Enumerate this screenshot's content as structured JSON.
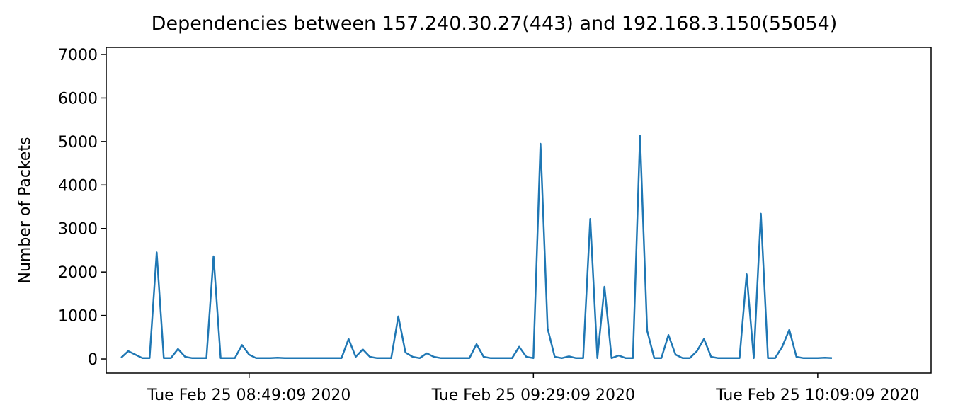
{
  "chart_data": {
    "type": "line",
    "title": "Dependencies between 157.240.30.27(443) and 192.168.3.150(55054)",
    "y_label": "Number of Packets",
    "color": "#1f77b4",
    "x": [
      "2020-02-25T08:31:09",
      "2020-02-25T08:32:09",
      "2020-02-25T08:33:09",
      "2020-02-25T08:34:09",
      "2020-02-25T08:35:09",
      "2020-02-25T08:36:09",
      "2020-02-25T08:37:09",
      "2020-02-25T08:38:09",
      "2020-02-25T08:39:09",
      "2020-02-25T08:40:09",
      "2020-02-25T08:41:09",
      "2020-02-25T08:42:09",
      "2020-02-25T08:43:09",
      "2020-02-25T08:44:09",
      "2020-02-25T08:45:09",
      "2020-02-25T08:46:09",
      "2020-02-25T08:47:09",
      "2020-02-25T08:48:09",
      "2020-02-25T08:49:09",
      "2020-02-25T08:50:09",
      "2020-02-25T08:51:09",
      "2020-02-25T08:52:09",
      "2020-02-25T08:53:09",
      "2020-02-25T08:54:09",
      "2020-02-25T08:55:09",
      "2020-02-25T08:56:09",
      "2020-02-25T08:57:09",
      "2020-02-25T08:58:09",
      "2020-02-25T08:59:09",
      "2020-02-25T09:00:09",
      "2020-02-25T09:01:09",
      "2020-02-25T09:02:09",
      "2020-02-25T09:03:09",
      "2020-02-25T09:04:09",
      "2020-02-25T09:05:09",
      "2020-02-25T09:06:09",
      "2020-02-25T09:07:09",
      "2020-02-25T09:08:09",
      "2020-02-25T09:09:09",
      "2020-02-25T09:10:09",
      "2020-02-25T09:11:09",
      "2020-02-25T09:12:09",
      "2020-02-25T09:13:09",
      "2020-02-25T09:14:09",
      "2020-02-25T09:15:09",
      "2020-02-25T09:16:09",
      "2020-02-25T09:17:09",
      "2020-02-25T09:18:09",
      "2020-02-25T09:19:09",
      "2020-02-25T09:20:09",
      "2020-02-25T09:21:09",
      "2020-02-25T09:22:09",
      "2020-02-25T09:23:09",
      "2020-02-25T09:24:09",
      "2020-02-25T09:25:09",
      "2020-02-25T09:26:09",
      "2020-02-25T09:27:09",
      "2020-02-25T09:28:09",
      "2020-02-25T09:29:09",
      "2020-02-25T09:30:09",
      "2020-02-25T09:31:09",
      "2020-02-25T09:32:09",
      "2020-02-25T09:33:09",
      "2020-02-25T09:34:09",
      "2020-02-25T09:35:09",
      "2020-02-25T09:36:09",
      "2020-02-25T09:37:09",
      "2020-02-25T09:38:09",
      "2020-02-25T09:39:09",
      "2020-02-25T09:40:09",
      "2020-02-25T09:41:09",
      "2020-02-25T09:42:09",
      "2020-02-25T09:43:09",
      "2020-02-25T09:44:09",
      "2020-02-25T09:45:09",
      "2020-02-25T09:46:09",
      "2020-02-25T09:47:09",
      "2020-02-25T09:48:09",
      "2020-02-25T09:49:09",
      "2020-02-25T09:50:09",
      "2020-02-25T09:51:09",
      "2020-02-25T09:52:09",
      "2020-02-25T09:53:09",
      "2020-02-25T09:54:09",
      "2020-02-25T09:55:09",
      "2020-02-25T09:56:09",
      "2020-02-25T09:57:09",
      "2020-02-25T09:58:09",
      "2020-02-25T09:59:09",
      "2020-02-25T10:00:09",
      "2020-02-25T10:01:09",
      "2020-02-25T10:02:09",
      "2020-02-25T10:03:09",
      "2020-02-25T10:04:09",
      "2020-02-25T10:05:09",
      "2020-02-25T10:06:09",
      "2020-02-25T10:07:09",
      "2020-02-25T10:08:09",
      "2020-02-25T10:09:09",
      "2020-02-25T10:10:09",
      "2020-02-25T10:11:09"
    ],
    "values": [
      30,
      180,
      100,
      20,
      20,
      2450,
      20,
      20,
      230,
      50,
      20,
      20,
      20,
      2360,
      20,
      20,
      20,
      320,
      100,
      20,
      20,
      20,
      30,
      20,
      20,
      20,
      20,
      20,
      20,
      20,
      20,
      20,
      460,
      50,
      220,
      50,
      20,
      20,
      20,
      980,
      150,
      50,
      20,
      130,
      50,
      20,
      20,
      20,
      20,
      20,
      340,
      50,
      20,
      20,
      20,
      20,
      280,
      50,
      20,
      4950,
      700,
      50,
      20,
      60,
      20,
      20,
      3220,
      20,
      1660,
      20,
      80,
      20,
      20,
      5130,
      650,
      20,
      20,
      550,
      100,
      20,
      20,
      180,
      460,
      50,
      20,
      20,
      20,
      20,
      1950,
      20,
      3340,
      20,
      20,
      280,
      670,
      50,
      20,
      20,
      20,
      30,
      20
    ],
    "xlim": [
      "2020-02-25T08:29:03",
      "2020-02-25T10:25:06"
    ],
    "xticks": [
      {
        "value": "2020-02-25T08:49:09",
        "label": "Tue Feb 25 08:49:09 2020"
      },
      {
        "value": "2020-02-25T09:29:09",
        "label": "Tue Feb 25 09:29:09 2020"
      },
      {
        "value": "2020-02-25T10:09:09",
        "label": "Tue Feb 25 10:09:09 2020"
      }
    ],
    "ylim": [
      -325,
      7163
    ],
    "yticks": [
      0,
      1000,
      2000,
      3000,
      4000,
      5000,
      6000,
      7000
    ],
    "grid": false
  }
}
